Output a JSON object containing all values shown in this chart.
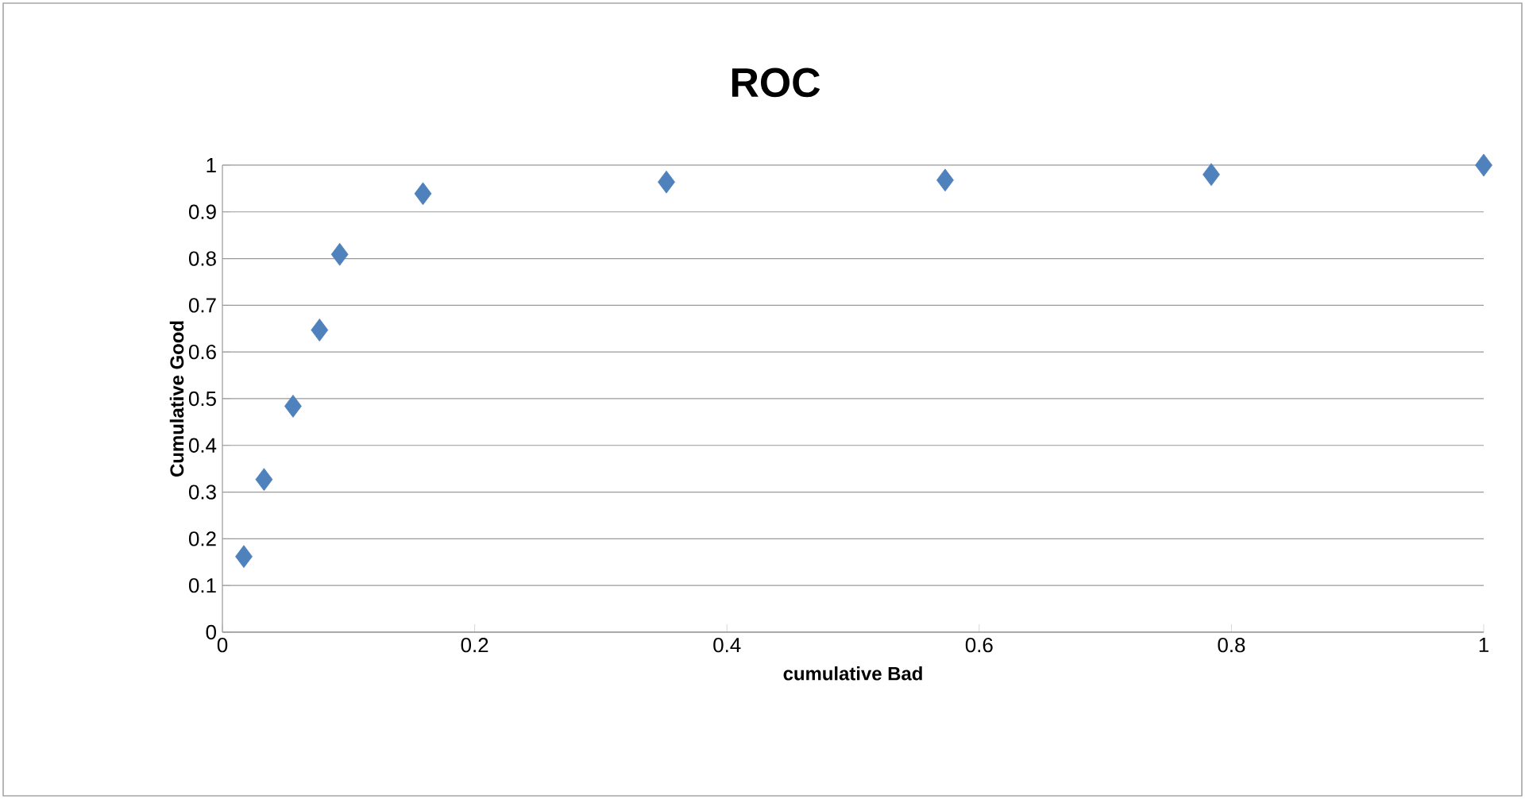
{
  "chart_data": {
    "type": "scatter",
    "title": "ROC",
    "xlabel": "cumulative Bad",
    "ylabel": "Cumulative Good",
    "x": [
      0.017,
      0.033,
      0.056,
      0.077,
      0.093,
      0.159,
      0.352,
      0.573,
      0.784,
      1
    ],
    "series": [
      {
        "color": "#4f81bd",
        "values": [
          0.162,
          0.327,
          0.484,
          0.647,
          0.809,
          0.939,
          0.964,
          0.968,
          0.98,
          1
        ]
      }
    ],
    "xlim": [
      0,
      1
    ],
    "ylim": [
      0,
      1
    ],
    "xticks": [
      0,
      0.2,
      0.4,
      0.6,
      0.8,
      1
    ],
    "yticks": [
      0,
      0.1,
      0.2,
      0.3,
      0.4,
      0.5,
      0.6,
      0.7,
      0.8,
      0.9,
      1
    ],
    "grid": "y",
    "marker": "diamond",
    "legend": false
  }
}
